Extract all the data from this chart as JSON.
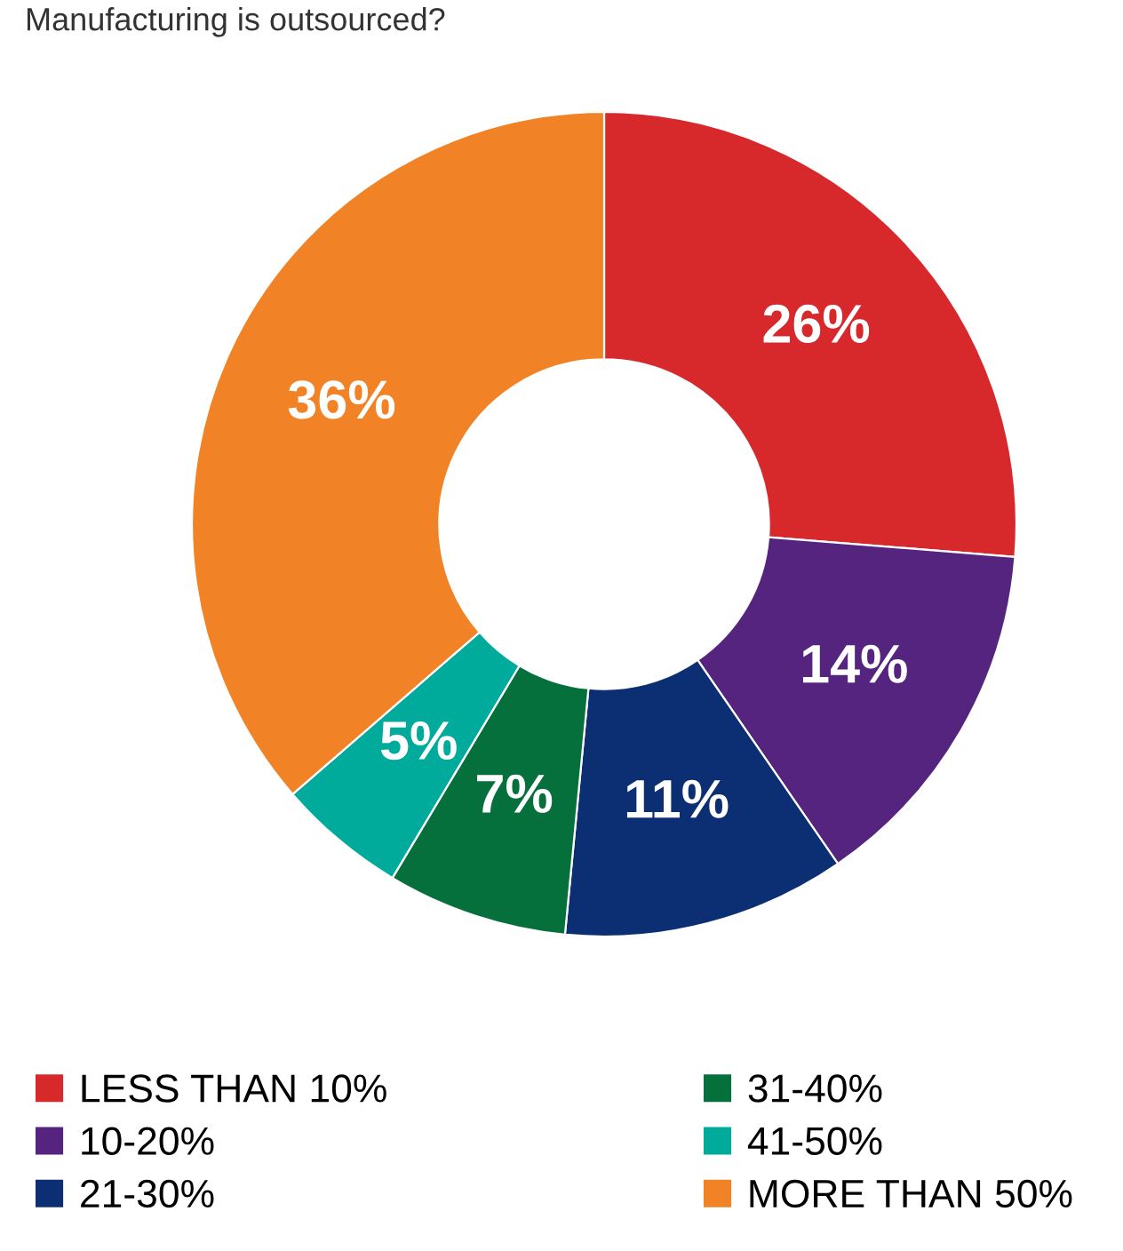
{
  "chart_data": {
    "type": "donut",
    "title": "Manufacturing is outsourced?",
    "categories": [
      "LESS THAN 10%",
      "10-20%",
      "21-30%",
      "31-40%",
      "41-50%",
      "MORE THAN 50%"
    ],
    "values": [
      26,
      14,
      11,
      7,
      5,
      36
    ],
    "value_labels": [
      "26%",
      "14%",
      "11%",
      "7%",
      "5%",
      "36%"
    ],
    "colors": [
      "#d7282c",
      "#55247f",
      "#0b2f72",
      "#06703d",
      "#00ab9c",
      "#f28226"
    ],
    "legend": "bottom"
  }
}
